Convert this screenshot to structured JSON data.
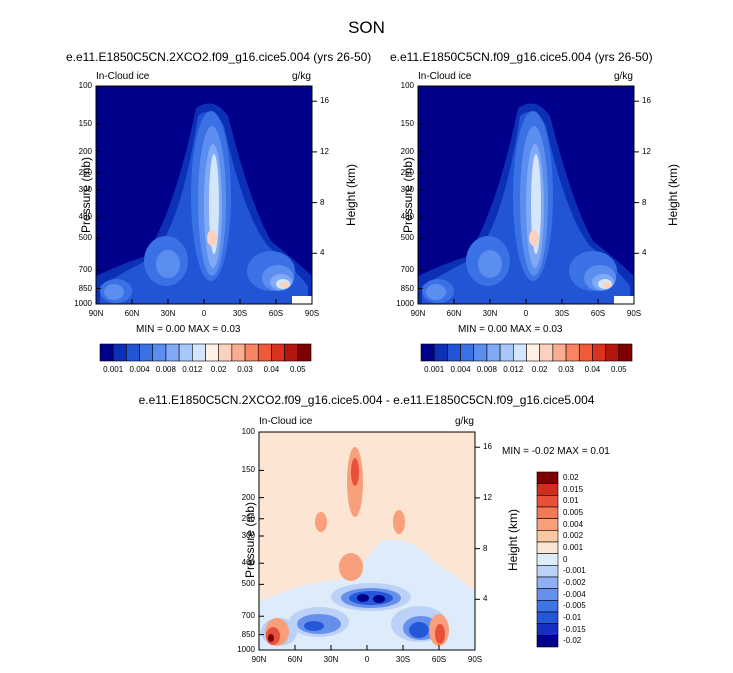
{
  "main_title": "SON",
  "colors": {
    "frame": "#000000",
    "background": "#ffffff",
    "seq_palette": [
      "#00008b",
      "#0b2fb5",
      "#2155d6",
      "#3a72e6",
      "#5c8ef0",
      "#80aaf6",
      "#a8c8fb",
      "#d4e6fc",
      "#fff1e6",
      "#fcd2be",
      "#fbad90",
      "#f78561",
      "#ef5a3b",
      "#d9331f",
      "#b3160d",
      "#7f0000"
    ],
    "diff_palette": [
      "#00008b",
      "#1530c0",
      "#2557d9",
      "#3f74e4",
      "#6690ec",
      "#8fb0f3",
      "#bcd1f8",
      "#deebfa",
      "#fde5d3",
      "#fbc6a4",
      "#f7a07b",
      "#f27a57",
      "#e8503a",
      "#cf2d1f",
      "#7f0000"
    ]
  },
  "chart_data": [
    {
      "type": "heatmap",
      "title": "e.e11.E1850C5CN.2XCO2.f09_g16.cice5.004 (yrs 26-50)",
      "left_label": "In-Cloud ice",
      "units": "g/kg",
      "ylabel": "Pressure (mb)",
      "ylabel_right": "Height (km)",
      "x_ticks": [
        "90N",
        "60N",
        "30N",
        "0",
        "30S",
        "60S",
        "90S"
      ],
      "y_ticks": [
        "100",
        "150",
        "200",
        "250",
        "300",
        "400",
        "500",
        "700",
        "850",
        "1000"
      ],
      "y_right_ticks": [
        "16",
        "12",
        "8",
        "4"
      ],
      "min_max": "MIN =  0.00  MAX =  0.03",
      "colorbar_labels": [
        "0.001",
        "0.004",
        "0.008",
        "0.012",
        "0.02",
        "0.03",
        "0.04",
        "0.05"
      ]
    },
    {
      "type": "heatmap",
      "title": "e.e11.E1850C5CN.f09_g16.cice5.004 (yrs 26-50)",
      "left_label": "In-Cloud ice",
      "units": "g/kg",
      "ylabel": "Pressure (mb)",
      "ylabel_right": "Height (km)",
      "x_ticks": [
        "90N",
        "60N",
        "30N",
        "0",
        "30S",
        "60S",
        "90S"
      ],
      "y_ticks": [
        "100",
        "150",
        "200",
        "250",
        "300",
        "400",
        "500",
        "700",
        "850",
        "1000"
      ],
      "y_right_ticks": [
        "16",
        "12",
        "8",
        "4"
      ],
      "min_max": "MIN =  0.00  MAX =  0.03",
      "colorbar_labels": [
        "0.001",
        "0.004",
        "0.008",
        "0.012",
        "0.02",
        "0.03",
        "0.04",
        "0.05"
      ]
    },
    {
      "type": "heatmap",
      "title": "e.e11.E1850C5CN.2XCO2.f09_g16.cice5.004 - e.e11.E1850C5CN.f09_g16.cice5.004",
      "left_label": "In-Cloud ice",
      "units": "g/kg",
      "ylabel": "Pressure (mb)",
      "ylabel_right": "Height (km)",
      "x_ticks": [
        "90N",
        "60N",
        "30N",
        "0",
        "30S",
        "60S",
        "90S"
      ],
      "y_ticks": [
        "100",
        "150",
        "200",
        "250",
        "300",
        "400",
        "500",
        "700",
        "850",
        "1000"
      ],
      "y_right_ticks": [
        "16",
        "12",
        "8",
        "4"
      ],
      "min_max": "MIN = -0.02  MAX =  0.01",
      "colorbar_labels": [
        "0.02",
        "0.015",
        "0.01",
        "0.005",
        "0.004",
        "0.002",
        "0.001",
        "0",
        "-0.001",
        "-0.002",
        "-0.004",
        "-0.005",
        "-0.01",
        "-0.015",
        "-0.02"
      ]
    }
  ]
}
